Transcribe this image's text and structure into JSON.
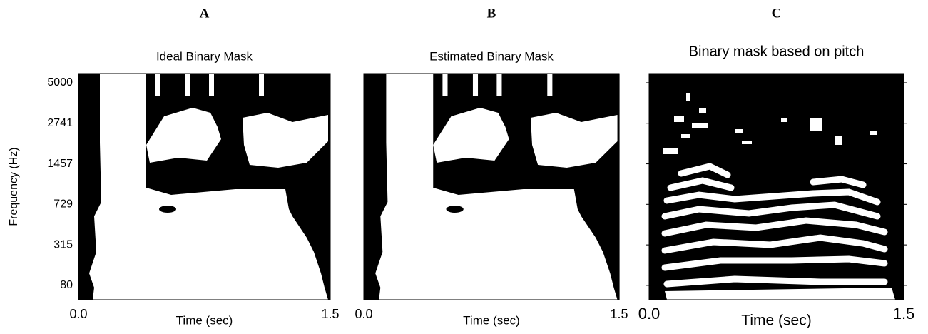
{
  "chart_data": [
    {
      "type": "image",
      "panel": "A",
      "title": "Ideal Binary Mask",
      "xlabel": "Time (sec)",
      "ylabel": "Frequency (Hz)",
      "xlim": [
        0,
        1.5
      ],
      "xticks": [
        {
          "value": 0,
          "label": "0.0"
        },
        {
          "value": 1.5,
          "label": "1.5"
        }
      ],
      "ylim": [
        24,
        5720
      ],
      "yscale": "erb",
      "yticks": [
        80,
        315,
        729,
        1457,
        2741,
        5000
      ]
    },
    {
      "type": "image",
      "panel": "B",
      "title": "Estimated Binary Mask",
      "xlabel": "Time (sec)",
      "xlim": [
        0,
        1.5
      ],
      "xticks": [
        {
          "value": 0,
          "label": "0.0"
        },
        {
          "value": 1.5,
          "label": "1.5"
        }
      ],
      "ylim": [
        24,
        5720
      ],
      "yscale": "erb"
    },
    {
      "type": "image",
      "panel": "C",
      "title": "Binary mask based on pitch",
      "xlabel": "Time (sec)",
      "xlim": [
        0,
        1.5
      ],
      "xticks": [
        {
          "value": 0,
          "label": "0.0"
        },
        {
          "value": 1.5,
          "label": "1.5"
        }
      ],
      "ylim": [
        24,
        5720
      ],
      "yscale": "erb"
    }
  ]
}
